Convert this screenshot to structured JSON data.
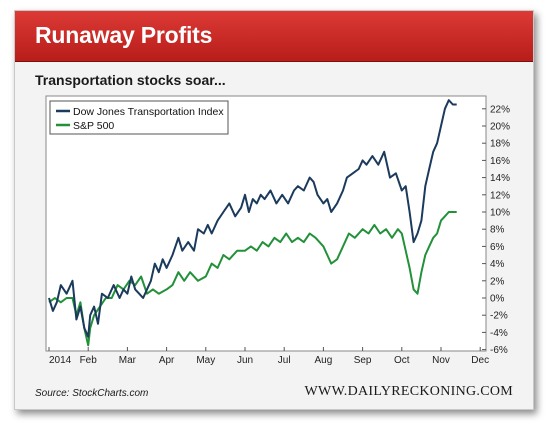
{
  "header": {
    "title": "Runaway Profits"
  },
  "subtitle": "Transportation stocks soar...",
  "source": "Source: StockCharts.com",
  "credit": "WWW.DAILYRECKONING.COM",
  "colors": {
    "dow": "#1b3a5c",
    "sp": "#23913a",
    "header": "#c62a27"
  },
  "chart_data": {
    "type": "line",
    "title": "",
    "xlabel": "",
    "ylabel": "",
    "x_tick_labels": [
      "2014",
      "Feb",
      "Mar",
      "Apr",
      "May",
      "Jun",
      "Jul",
      "Aug",
      "Sep",
      "Oct",
      "Nov",
      "Dec"
    ],
    "y_tick_labels": [
      "22%",
      "20%",
      "18%",
      "16%",
      "14%",
      "12%",
      "10%",
      "8%",
      "6%",
      "4%",
      "2%",
      "0%",
      "-2%",
      "-4%",
      "-6%"
    ],
    "ylim": [
      -6,
      23
    ],
    "grid": false,
    "legend": "top-left",
    "x_unit": "month index from Jan 2014",
    "series": [
      {
        "name": "Dow Jones Transportation Index",
        "x": [
          0,
          0.1,
          0.2,
          0.3,
          0.45,
          0.6,
          0.7,
          0.8,
          0.9,
          1.0,
          1.05,
          1.15,
          1.25,
          1.35,
          1.5,
          1.65,
          1.8,
          1.9,
          2.0,
          2.1,
          2.2,
          2.3,
          2.4,
          2.5,
          2.6,
          2.7,
          2.8,
          2.9,
          3.0,
          3.15,
          3.3,
          3.4,
          3.55,
          3.7,
          3.8,
          3.95,
          4.05,
          4.15,
          4.3,
          4.45,
          4.6,
          4.75,
          4.9,
          5.0,
          5.1,
          5.2,
          5.3,
          5.4,
          5.5,
          5.65,
          5.8,
          5.95,
          6.1,
          6.25,
          6.35,
          6.5,
          6.65,
          6.75,
          6.85,
          7.0,
          7.1,
          7.2,
          7.35,
          7.5,
          7.6,
          7.75,
          7.9,
          8.0,
          8.1,
          8.25,
          8.4,
          8.55,
          8.7,
          8.85,
          9.0,
          9.1,
          9.2,
          9.3,
          9.4,
          9.5,
          9.6,
          9.7,
          9.8,
          9.9,
          10.0,
          10.1,
          10.2,
          10.3,
          10.4
        ],
        "values": [
          0,
          -1.5,
          -0.5,
          1.5,
          0.5,
          2.0,
          -2.5,
          -1.0,
          -3.5,
          -4.5,
          -2.0,
          -1.0,
          -3.0,
          0.5,
          0.0,
          1.5,
          0.0,
          1.0,
          0.5,
          2.5,
          1.0,
          0.5,
          0.0,
          1.0,
          2.0,
          4.0,
          3.0,
          4.5,
          3.5,
          5.0,
          7.0,
          5.5,
          6.5,
          5.5,
          8.0,
          7.5,
          8.5,
          7.5,
          9.0,
          10.0,
          11.0,
          9.5,
          10.5,
          12.0,
          10.0,
          11.5,
          11.0,
          12.0,
          11.5,
          12.5,
          11.0,
          12.0,
          11.0,
          12.5,
          13.0,
          12.5,
          14.0,
          13.5,
          12.0,
          11.0,
          11.5,
          10.0,
          11.0,
          12.5,
          14.0,
          14.5,
          15.0,
          16.0,
          15.5,
          16.5,
          15.5,
          17.0,
          14.0,
          14.5,
          12.5,
          13.0,
          10.0,
          6.5,
          7.5,
          9.0,
          13.0,
          15.0,
          17.0,
          18.0,
          20.0,
          22.0,
          23.0,
          22.5,
          22.5
        ]
      },
      {
        "name": "S&P 500",
        "x": [
          0,
          0.15,
          0.3,
          0.45,
          0.6,
          0.7,
          0.8,
          0.9,
          1.0,
          1.05,
          1.15,
          1.3,
          1.45,
          1.6,
          1.75,
          1.9,
          2.05,
          2.2,
          2.35,
          2.5,
          2.65,
          2.8,
          3.0,
          3.15,
          3.3,
          3.45,
          3.6,
          3.8,
          4.0,
          4.15,
          4.3,
          4.45,
          4.6,
          4.8,
          5.0,
          5.15,
          5.3,
          5.45,
          5.6,
          5.75,
          5.9,
          6.05,
          6.2,
          6.35,
          6.5,
          6.65,
          6.8,
          7.0,
          7.1,
          7.2,
          7.35,
          7.5,
          7.65,
          7.8,
          8.0,
          8.15,
          8.3,
          8.45,
          8.6,
          8.75,
          8.9,
          9.0,
          9.1,
          9.2,
          9.3,
          9.4,
          9.5,
          9.6,
          9.7,
          9.8,
          9.9,
          10.0,
          10.1,
          10.2,
          10.3,
          10.4
        ],
        "values": [
          -0.5,
          0.0,
          -0.5,
          0.0,
          0.0,
          -2.0,
          -0.5,
          -3.5,
          -5.5,
          -3.5,
          -2.0,
          -1.0,
          0.0,
          0.0,
          1.5,
          1.0,
          2.0,
          1.5,
          2.5,
          0.5,
          1.0,
          0.5,
          1.0,
          1.5,
          3.0,
          2.0,
          3.0,
          2.0,
          2.5,
          4.0,
          3.5,
          5.0,
          4.5,
          5.5,
          5.5,
          6.0,
          5.5,
          6.5,
          6.0,
          7.0,
          6.5,
          7.5,
          6.5,
          7.0,
          6.5,
          7.5,
          7.0,
          6.0,
          5.0,
          4.0,
          4.5,
          6.0,
          7.5,
          7.0,
          8.0,
          7.5,
          8.5,
          7.5,
          8.0,
          7.0,
          8.0,
          7.5,
          5.5,
          3.5,
          1.0,
          0.5,
          3.0,
          5.0,
          6.0,
          7.0,
          7.5,
          9.0,
          9.5,
          10.0,
          10.0,
          10.0
        ]
      }
    ]
  }
}
